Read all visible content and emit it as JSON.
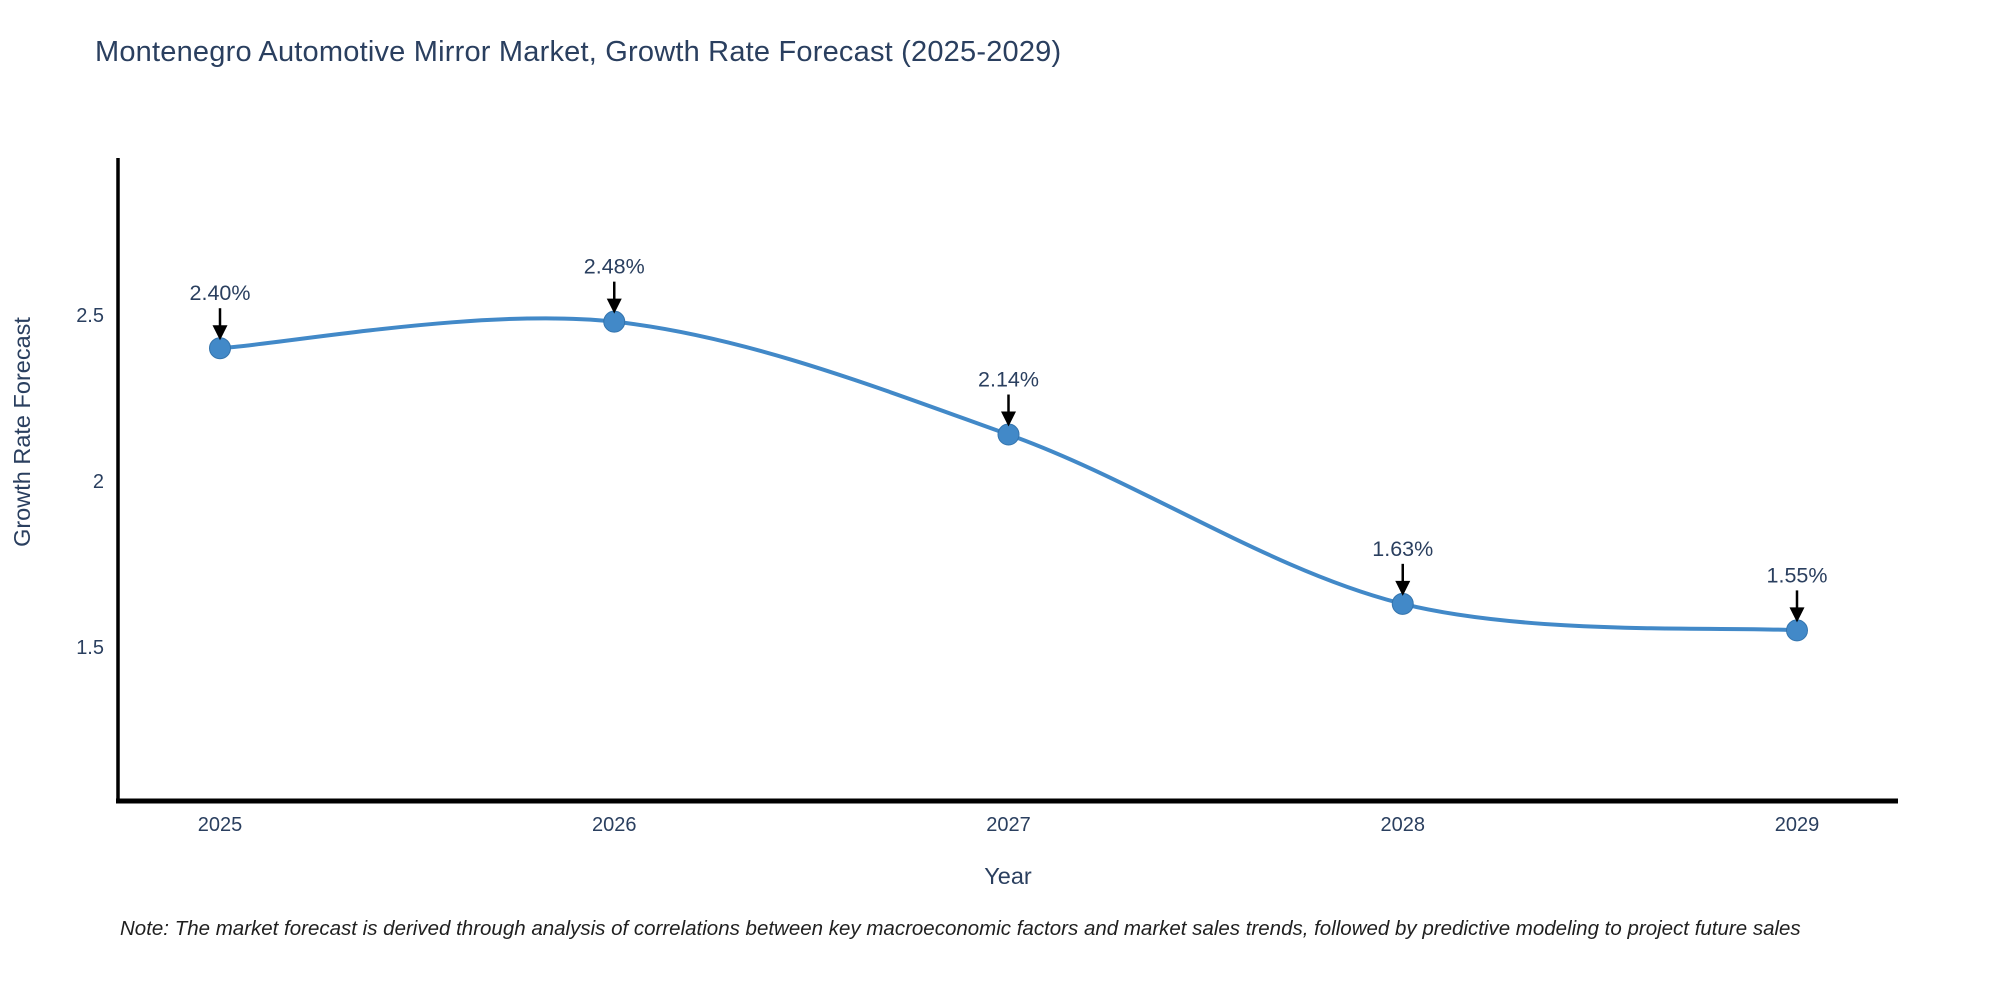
{
  "title": "Montenegro Automotive Mirror Market, Growth Rate Forecast (2025-2029)",
  "note": "Note: The market forecast is derived through analysis of correlations between key macroeconomic factors and market sales trends, followed by predictive modeling to project future sales",
  "chart_data": {
    "type": "line",
    "title": "Montenegro Automotive Mirror Market, Growth Rate Forecast (2025-2029)",
    "xlabel": "Year",
    "ylabel": "Growth Rate Forecast",
    "categories": [
      "2025",
      "2026",
      "2027",
      "2028",
      "2029"
    ],
    "series": [
      {
        "name": "Growth Rate Forecast",
        "values": [
          2.4,
          2.48,
          2.14,
          1.63,
          1.55
        ]
      }
    ],
    "point_labels": [
      "2.40%",
      "2.48%",
      "2.14%",
      "1.63%",
      "1.55%"
    ],
    "yticks": [
      {
        "value": 2.5,
        "label": "2.5"
      },
      {
        "value": 2.0,
        "label": "2"
      },
      {
        "value": 1.5,
        "label": "1.5"
      }
    ],
    "ylim": [
      1.0,
      3.0
    ],
    "line_shape": "spline",
    "grid": false,
    "legend_position": "none",
    "annotations_have_arrows": true
  },
  "colors": {
    "line": "#4289c8",
    "marker": "#4289c8",
    "marker_edge": "#3474ad",
    "axis_line": "#000000",
    "tick_text": "#2a3f5f",
    "title_text": "#2a3f5f",
    "annotation_text": "#2a3f5f",
    "arrow": "#000000",
    "note_text": "#1f1f1f",
    "background": "#ffffff"
  }
}
